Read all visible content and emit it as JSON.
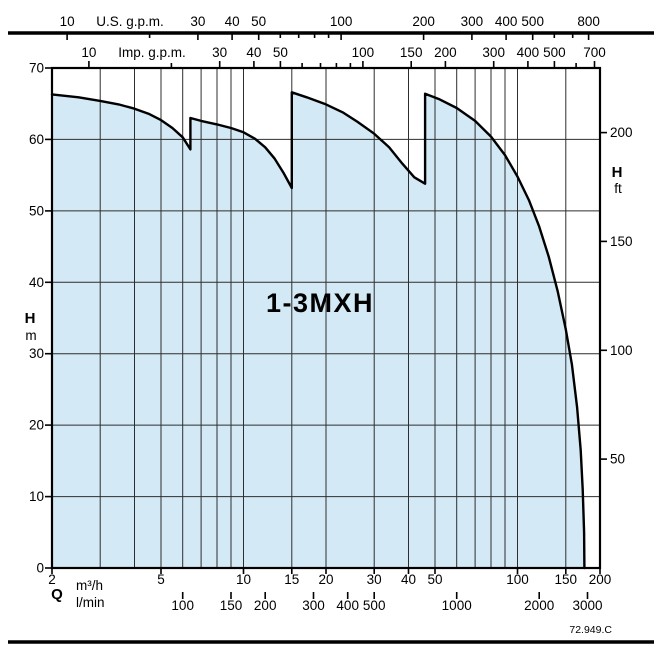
{
  "chart_data": {
    "type": "area",
    "title": "1-3MXH",
    "footer_code": "72.949.C",
    "x_scale": "log",
    "x_range": [
      2,
      200
    ],
    "y_range": [
      0,
      70
    ],
    "grid": {
      "x_lines_m3h": [
        3,
        4,
        5,
        6,
        7,
        8,
        9,
        10,
        15,
        20,
        30,
        40,
        50,
        60,
        70,
        80,
        90,
        100,
        150
      ],
      "y_lines_m": [
        10,
        20,
        30,
        40,
        50,
        60
      ]
    },
    "axes": {
      "top_us_gpm": {
        "label": "U.S. g.p.m.",
        "unit_per_m3h": 4.4029,
        "major_ticks": [
          10,
          30,
          40,
          50,
          100,
          200,
          300,
          400,
          500,
          800
        ],
        "minor_ticks": [
          20,
          60,
          70,
          80,
          90,
          600,
          700
        ]
      },
      "top_imp_gpm": {
        "label": "Imp. g.p.m.",
        "unit_per_m3h": 3.6662,
        "major_ticks": [
          10,
          30,
          40,
          50,
          100,
          150,
          200,
          300,
          400,
          500,
          700
        ],
        "minor_ticks": [
          20,
          60,
          70,
          80,
          90,
          600
        ]
      },
      "bottom_m3h": {
        "label_q": "Q",
        "label_unit": "m³/h",
        "ticks": [
          2,
          5,
          10,
          15,
          20,
          30,
          40,
          50,
          100,
          150,
          200
        ]
      },
      "bottom_lmin": {
        "label_unit": "l/min",
        "unit_per_m3h": 16.6667,
        "ticks": [
          100,
          150,
          200,
          300,
          400,
          500,
          1000,
          2000,
          3000
        ]
      },
      "left_m": {
        "label_h": "H",
        "label_unit": "m",
        "ticks": [
          0,
          10,
          20,
          30,
          40,
          50,
          60,
          70
        ]
      },
      "right_ft": {
        "label_h": "H",
        "label_unit": "ft",
        "ft_per_m": 3.2808,
        "ticks": [
          50,
          100,
          150,
          200
        ]
      }
    },
    "envelope": {
      "fill_color": "#d3e9f5",
      "line_color": "#000000",
      "points": [
        [
          2,
          66.3
        ],
        [
          2.5,
          65.9
        ],
        [
          3,
          65.4
        ],
        [
          3.5,
          64.9
        ],
        [
          4,
          64.3
        ],
        [
          4.5,
          63.6
        ],
        [
          5,
          62.7
        ],
        [
          5.5,
          61.6
        ],
        [
          6,
          60.3
        ],
        [
          6.4,
          58.6
        ],
        [
          6.4,
          63.0
        ],
        [
          7,
          62.6
        ],
        [
          8,
          62.1
        ],
        [
          9,
          61.6
        ],
        [
          10,
          61.0
        ],
        [
          11,
          60.1
        ],
        [
          12,
          58.9
        ],
        [
          13,
          57.3
        ],
        [
          14,
          55.3
        ],
        [
          15,
          53.2
        ],
        [
          15,
          66.6
        ],
        [
          17,
          65.9
        ],
        [
          20,
          64.9
        ],
        [
          23,
          63.8
        ],
        [
          26,
          62.5
        ],
        [
          30,
          60.8
        ],
        [
          34,
          58.9
        ],
        [
          38,
          56.6
        ],
        [
          42,
          54.7
        ],
        [
          46,
          53.8
        ],
        [
          46,
          66.4
        ],
        [
          52,
          65.6
        ],
        [
          60,
          64.4
        ],
        [
          70,
          62.6
        ],
        [
          80,
          60.4
        ],
        [
          90,
          57.8
        ],
        [
          100,
          54.8
        ],
        [
          110,
          51.5
        ],
        [
          120,
          47.8
        ],
        [
          130,
          43.6
        ],
        [
          140,
          38.8
        ],
        [
          150,
          33.4
        ],
        [
          158,
          28.5
        ],
        [
          165,
          22.5
        ],
        [
          170,
          16.5
        ],
        [
          173,
          11
        ],
        [
          175,
          5
        ],
        [
          175.5,
          0
        ]
      ]
    }
  }
}
